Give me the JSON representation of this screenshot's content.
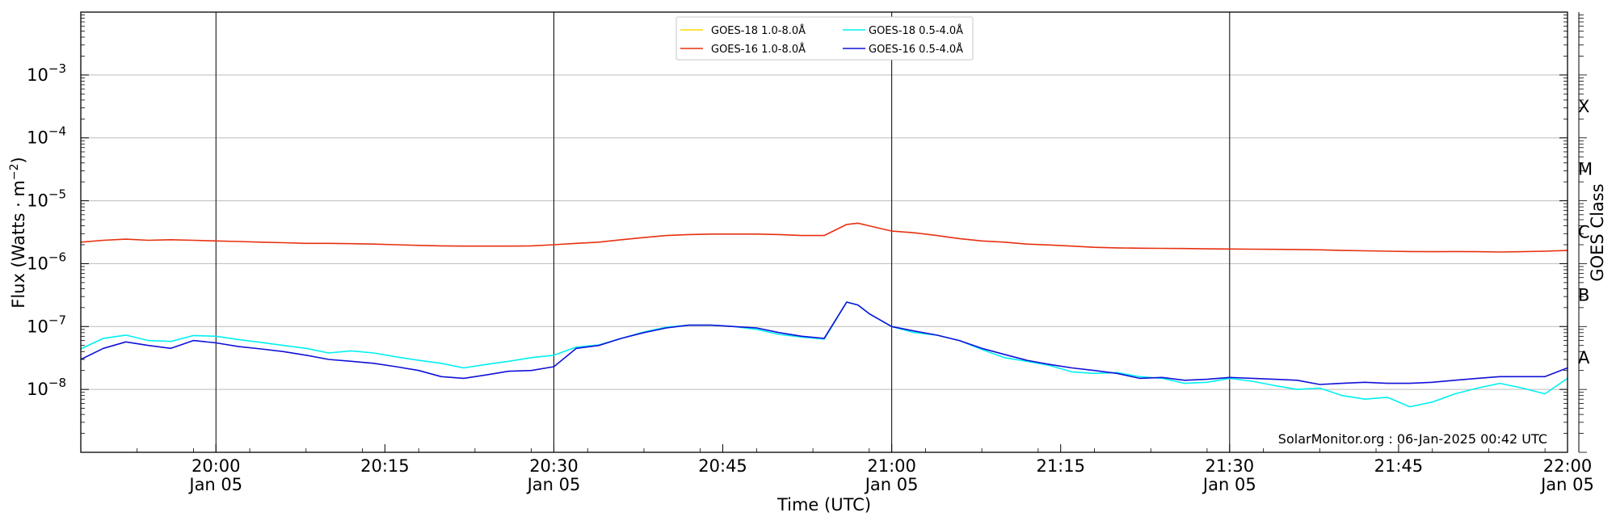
{
  "chart_data": {
    "type": "line",
    "xlabel": "Time (UTC)",
    "ylabel_text": "Flux (Watts · m",
    "ylabel_sup": "−2",
    "ylabel_tail": ")",
    "y2label": "GOES Class",
    "yscale": "log",
    "xlim": [
      "19:48",
      "22:00"
    ],
    "ylim": [
      1e-09,
      0.01
    ],
    "grid": "horizontal",
    "legend_position": "top-center",
    "credit": "SolarMonitor.org : 06-Jan-2025 00:42 UTC",
    "y_ticks": [
      {
        "value": 1e-08,
        "base": "10",
        "exp": "−8"
      },
      {
        "value": 1e-07,
        "base": "10",
        "exp": "−7"
      },
      {
        "value": 1e-06,
        "base": "10",
        "exp": "−6"
      },
      {
        "value": 1e-05,
        "base": "10",
        "exp": "−5"
      },
      {
        "value": 0.0001,
        "base": "10",
        "exp": "−4"
      },
      {
        "value": 0.001,
        "base": "10",
        "exp": "−3"
      }
    ],
    "goes_classes": [
      {
        "label": "A",
        "value": 3.16e-08
      },
      {
        "label": "B",
        "value": 3.16e-07
      },
      {
        "label": "C",
        "value": 3.16e-06
      },
      {
        "label": "M",
        "value": 3.16e-05
      },
      {
        "label": "X",
        "value": 0.000316
      }
    ],
    "x_ticks": [
      {
        "time": "20:00",
        "date": "Jan 05"
      },
      {
        "time": "20:15",
        "date": ""
      },
      {
        "time": "20:30",
        "date": "Jan 05"
      },
      {
        "time": "20:45",
        "date": ""
      },
      {
        "time": "21:00",
        "date": "Jan 05"
      },
      {
        "time": "21:15",
        "date": ""
      },
      {
        "time": "21:30",
        "date": "Jan 05"
      },
      {
        "time": "21:45",
        "date": ""
      },
      {
        "time": "22:00",
        "date": "Jan 05"
      }
    ],
    "vlines": [
      "20:00",
      "20:30",
      "21:00",
      "21:30"
    ],
    "legend": [
      {
        "name": "GOES-18 1.0-8.0Å",
        "color": "#ffd700"
      },
      {
        "name": "GOES-18 0.5-4.0Å",
        "color": "#00f0f0"
      },
      {
        "name": "GOES-16 1.0-8.0Å",
        "color": "#e83010"
      },
      {
        "name": "GOES-16 0.5-4.0Å",
        "color": "#1010d8"
      }
    ],
    "x": [
      "19:48",
      "19:50",
      "19:52",
      "19:54",
      "19:56",
      "19:58",
      "20:00",
      "20:02",
      "20:04",
      "20:06",
      "20:08",
      "20:10",
      "20:12",
      "20:14",
      "20:16",
      "20:18",
      "20:20",
      "20:22",
      "20:24",
      "20:26",
      "20:28",
      "20:30",
      "20:32",
      "20:34",
      "20:36",
      "20:38",
      "20:40",
      "20:42",
      "20:44",
      "20:46",
      "20:48",
      "20:50",
      "20:52",
      "20:54",
      "20:56",
      "20:57",
      "20:58",
      "21:00",
      "21:02",
      "21:04",
      "21:06",
      "21:08",
      "21:10",
      "21:12",
      "21:14",
      "21:16",
      "21:18",
      "21:20",
      "21:22",
      "21:24",
      "21:26",
      "21:28",
      "21:30",
      "21:32",
      "21:34",
      "21:36",
      "21:38",
      "21:40",
      "21:42",
      "21:44",
      "21:46",
      "21:48",
      "21:50",
      "21:52",
      "21:54",
      "21:56",
      "21:58",
      "22:00"
    ],
    "series": [
      {
        "name": "GOES-16 1.0-8.0Å",
        "color": "#e83010",
        "values": [
          2.2e-06,
          2.35e-06,
          2.45e-06,
          2.35e-06,
          2.4e-06,
          2.35e-06,
          2.3e-06,
          2.25e-06,
          2.2e-06,
          2.15e-06,
          2.1e-06,
          2.1e-06,
          2.08e-06,
          2.05e-06,
          2e-06,
          1.95e-06,
          1.92e-06,
          1.9e-06,
          1.9e-06,
          1.9e-06,
          1.92e-06,
          2e-06,
          2.1e-06,
          2.2e-06,
          2.4e-06,
          2.6e-06,
          2.8e-06,
          2.9e-06,
          2.95e-06,
          2.95e-06,
          2.95e-06,
          2.9e-06,
          2.8e-06,
          2.8e-06,
          4.2e-06,
          4.4e-06,
          4e-06,
          3.3e-06,
          3.1e-06,
          2.8e-06,
          2.5e-06,
          2.3e-06,
          2.2e-06,
          2.05e-06,
          1.98e-06,
          1.9e-06,
          1.82e-06,
          1.78e-06,
          1.76e-06,
          1.75e-06,
          1.74e-06,
          1.72e-06,
          1.71e-06,
          1.7e-06,
          1.69e-06,
          1.68e-06,
          1.66e-06,
          1.62e-06,
          1.6e-06,
          1.58e-06,
          1.56e-06,
          1.55e-06,
          1.56e-06,
          1.55e-06,
          1.53e-06,
          1.55e-06,
          1.58e-06,
          1.62e-06
        ]
      },
      {
        "name": "GOES-18 0.5-4.0Å",
        "color": "#00f0f0",
        "values": [
          4.4e-08,
          6.5e-08,
          7.3e-08,
          6e-08,
          5.8e-08,
          7.2e-08,
          7e-08,
          6.2e-08,
          5.6e-08,
          5e-08,
          4.5e-08,
          3.8e-08,
          4.1e-08,
          3.8e-08,
          3.3e-08,
          2.9e-08,
          2.6e-08,
          2.2e-08,
          2.5e-08,
          2.8e-08,
          3.2e-08,
          3.5e-08,
          4.7e-08,
          5.1e-08,
          6.5e-08,
          8.2e-08,
          9.8e-08,
          1.05e-07,
          1.05e-07,
          1e-07,
          9e-08,
          7.5e-08,
          6.8e-08,
          6.3e-08,
          2.45e-07,
          2.2e-07,
          1.6e-07,
          1e-07,
          8e-08,
          7.3e-08,
          6e-08,
          4.3e-08,
          3.2e-08,
          2.8e-08,
          2.4e-08,
          1.9e-08,
          1.8e-08,
          1.85e-08,
          1.6e-08,
          1.5e-08,
          1.25e-08,
          1.3e-08,
          1.5e-08,
          1.35e-08,
          1.15e-08,
          1e-08,
          1.05e-08,
          8e-09,
          7e-09,
          7.5e-09,
          5.3e-09,
          6.3e-09,
          8.5e-09,
          1.05e-08,
          1.25e-08,
          1.05e-08,
          8.5e-09,
          1.5e-08
        ]
      },
      {
        "name": "GOES-16 0.5-4.0Å",
        "color": "#1010d8",
        "values": [
          3e-08,
          4.5e-08,
          5.7e-08,
          5e-08,
          4.5e-08,
          6e-08,
          5.5e-08,
          4.8e-08,
          4.4e-08,
          4e-08,
          3.5e-08,
          3e-08,
          2.8e-08,
          2.6e-08,
          2.3e-08,
          2e-08,
          1.6e-08,
          1.5e-08,
          1.7e-08,
          1.95e-08,
          2e-08,
          2.3e-08,
          4.5e-08,
          5e-08,
          6.5e-08,
          8e-08,
          9.5e-08,
          1.05e-07,
          1.05e-07,
          1e-07,
          9.5e-08,
          8e-08,
          7e-08,
          6.5e-08,
          2.45e-07,
          2.2e-07,
          1.6e-07,
          1e-07,
          8.5e-08,
          7.3e-08,
          6e-08,
          4.5e-08,
          3.6e-08,
          2.9e-08,
          2.5e-08,
          2.2e-08,
          2e-08,
          1.8e-08,
          1.5e-08,
          1.55e-08,
          1.4e-08,
          1.45e-08,
          1.55e-08,
          1.5e-08,
          1.45e-08,
          1.4e-08,
          1.2e-08,
          1.25e-08,
          1.3e-08,
          1.25e-08,
          1.25e-08,
          1.3e-08,
          1.4e-08,
          1.5e-08,
          1.6e-08,
          1.6e-08,
          1.6e-08,
          2.2e-08
        ]
      }
    ]
  }
}
